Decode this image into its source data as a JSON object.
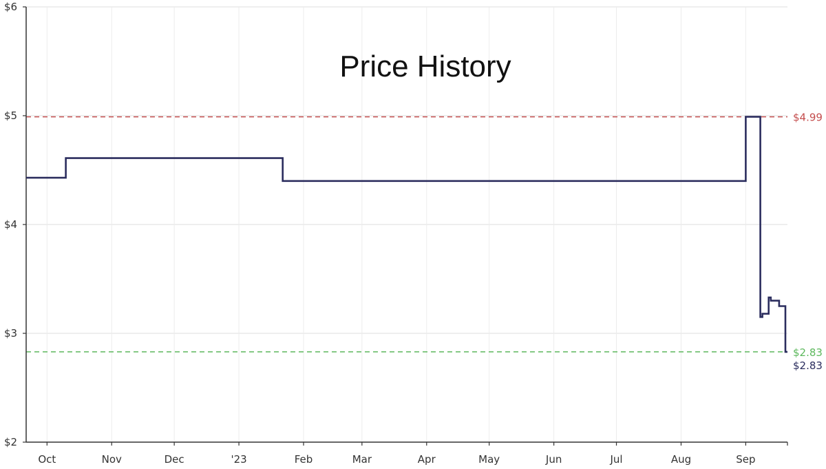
{
  "chart_data": {
    "type": "line",
    "title": "Price History",
    "xlabel": "",
    "ylabel": "",
    "x_range": [
      "2022-09-21",
      "2023-09-21"
    ],
    "ylim": [
      2,
      6
    ],
    "y_ticks": [
      {
        "value": 2,
        "label": "$2"
      },
      {
        "value": 3,
        "label": "$3"
      },
      {
        "value": 4,
        "label": "$4"
      },
      {
        "value": 5,
        "label": "$5"
      },
      {
        "value": 6,
        "label": "$6"
      }
    ],
    "x_ticks": [
      {
        "date": "2022-10-01",
        "label": "Oct"
      },
      {
        "date": "2022-11-01",
        "label": "Nov"
      },
      {
        "date": "2022-12-01",
        "label": "Dec"
      },
      {
        "date": "2023-01-01",
        "label": "'23"
      },
      {
        "date": "2023-02-01",
        "label": "Feb"
      },
      {
        "date": "2023-03-01",
        "label": "Mar"
      },
      {
        "date": "2023-04-01",
        "label": "Apr"
      },
      {
        "date": "2023-05-01",
        "label": "May"
      },
      {
        "date": "2023-06-01",
        "label": "Jun"
      },
      {
        "date": "2023-07-01",
        "label": "Jul"
      },
      {
        "date": "2023-08-01",
        "label": "Aug"
      },
      {
        "date": "2023-09-01",
        "label": "Sep"
      }
    ],
    "grid": true,
    "step": true,
    "series": [
      {
        "color": "#2b2d5e",
        "points": [
          {
            "x": "2022-09-21",
            "y": 4.43
          },
          {
            "x": "2022-10-10",
            "y": 4.61
          },
          {
            "x": "2023-01-22",
            "y": 4.4
          },
          {
            "x": "2023-09-01",
            "y": 4.99
          },
          {
            "x": "2023-09-08",
            "y": 3.15
          },
          {
            "x": "2023-09-09",
            "y": 3.18
          },
          {
            "x": "2023-09-12",
            "y": 3.33
          },
          {
            "x": "2023-09-13",
            "y": 3.3
          },
          {
            "x": "2023-09-17",
            "y": 3.25
          },
          {
            "x": "2023-09-20",
            "y": 2.83
          },
          {
            "x": "2023-09-21",
            "y": 2.83
          }
        ]
      }
    ],
    "reference_lines": [
      {
        "value": 4.99,
        "label": "$4.99",
        "color": "#c44d4d",
        "style": "dashed"
      },
      {
        "value": 2.83,
        "label": "$2.83",
        "color": "#5cb85c",
        "style": "dashed"
      }
    ],
    "end_label": {
      "value": 2.83,
      "label": "$2.83",
      "color": "#2b2d5e"
    }
  }
}
